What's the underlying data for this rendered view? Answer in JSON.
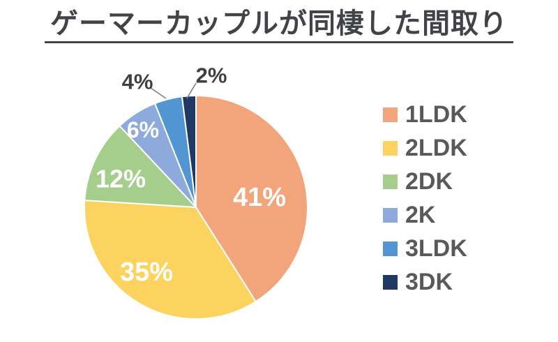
{
  "page": {
    "background": "#FFFFFF"
  },
  "chart_data": {
    "type": "pie",
    "title": "ゲーマーカップルが同棲した間取り",
    "categories": [
      "1LDK",
      "2LDK",
      "2DK",
      "2K",
      "3LDK",
      "3DK"
    ],
    "values": [
      41,
      35,
      12,
      6,
      4,
      2
    ],
    "unit": "%",
    "data_labels": [
      "41%",
      "35%",
      "12%",
      "6%",
      "4%",
      "2%"
    ],
    "colors": [
      "#F2A47A",
      "#FBD35E",
      "#A5CD8B",
      "#8EA9DB",
      "#5295D3",
      "#1F3864"
    ],
    "start_angle_deg": 0,
    "direction": "clockwise",
    "legend_position": "right",
    "grid": false,
    "title_color": "#414347",
    "legend_text_color": "#595959",
    "inside_label_color": "#FFFFFF",
    "outside_label_color": "#404040",
    "leader_line_color": "#808080",
    "slice_border_color": "#FFFFFF"
  }
}
